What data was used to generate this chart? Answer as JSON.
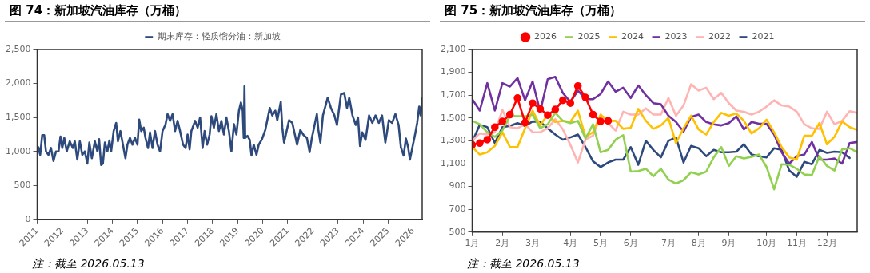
{
  "chart_data": [
    {
      "type": "line",
      "title": "图 74：新加坡汽油库存（万桶）",
      "legend": "top",
      "xlim": [
        2011,
        2026.36
      ],
      "xticks": [
        2011,
        2012,
        2013,
        2014,
        2015,
        2016,
        2017,
        2018,
        2019,
        2020,
        2021,
        2022,
        2023,
        2024,
        2025,
        2026
      ],
      "ylim": [
        0,
        2500
      ],
      "yticks": [
        0,
        500,
        {
          "value": 1000,
          "label": "1,000"
        },
        {
          "value": 1500,
          "label": "1,500"
        },
        {
          "value": 2000,
          "label": "2,000"
        },
        {
          "value": 2500,
          "label": "2,500"
        }
      ],
      "annotations": [
        "注：截至 2026.05.13"
      ],
      "x": [
        2011.0,
        2011.05,
        2011.12,
        2011.2,
        2011.28,
        2011.35,
        2011.45,
        2011.55,
        2011.65,
        2011.75,
        2011.85,
        2011.93,
        2012.0,
        2012.08,
        2012.18,
        2012.3,
        2012.42,
        2012.5,
        2012.6,
        2012.7,
        2012.8,
        2012.9,
        2013.0,
        2013.08,
        2013.18,
        2013.3,
        2013.4,
        2013.47,
        2013.55,
        2013.62,
        2013.7,
        2013.8,
        2013.88,
        2013.95,
        2014.05,
        2014.15,
        2014.22,
        2014.32,
        2014.42,
        2014.52,
        2014.6,
        2014.7,
        2014.8,
        2014.9,
        2015.0,
        2015.07,
        2015.15,
        2015.25,
        2015.32,
        2015.42,
        2015.5,
        2015.6,
        2015.7,
        2015.8,
        2015.9,
        2016.0,
        2016.12,
        2016.2,
        2016.3,
        2016.4,
        2016.5,
        2016.6,
        2016.7,
        2016.82,
        2016.92,
        2017.0,
        2017.08,
        2017.15,
        2017.3,
        2017.4,
        2017.5,
        2017.6,
        2017.68,
        2017.78,
        2017.88,
        2017.95,
        2018.05,
        2018.15,
        2018.25,
        2018.35,
        2018.45,
        2018.55,
        2018.65,
        2018.75,
        2018.85,
        2018.95,
        2019.05,
        2019.13,
        2019.2,
        2019.24,
        2019.27,
        2019.3,
        2019.39,
        2019.48,
        2019.55,
        2019.64,
        2019.75,
        2019.84,
        2019.97,
        2020.1,
        2020.28,
        2020.38,
        2020.5,
        2020.58,
        2020.72,
        2020.78,
        2020.85,
        2021.05,
        2021.18,
        2021.37,
        2021.5,
        2021.63,
        2021.76,
        2021.87,
        2021.96,
        2022.16,
        2022.22,
        2022.3,
        2022.4,
        2022.59,
        2022.72,
        2022.86,
        2022.96,
        2023.12,
        2023.25,
        2023.36,
        2023.45,
        2023.58,
        2023.71,
        2023.8,
        2023.88,
        2023.97,
        2024.1,
        2024.24,
        2024.37,
        2024.5,
        2024.63,
        2024.76,
        2024.89,
        2025.03,
        2025.16,
        2025.29,
        2025.42,
        2025.51,
        2025.62,
        2025.71,
        2025.8,
        2025.87,
        2025.97,
        2026.07,
        2026.16,
        2026.24,
        2026.3,
        2026.36
      ],
      "series": [
        {
          "name": "期末库存：轻质馏分油：新加坡",
          "color": "#2e4a7d",
          "values": [
            960,
            1060,
            950,
            1240,
            1240,
            1000,
            950,
            1050,
            860,
            1000,
            1000,
            1220,
            1050,
            1200,
            1000,
            1150,
            1050,
            1150,
            880,
            1150,
            950,
            1000,
            820,
            1130,
            900,
            1150,
            1000,
            1180,
            800,
            820,
            1130,
            1000,
            1160,
            1000,
            1300,
            1420,
            1150,
            1300,
            1100,
            900,
            1100,
            1200,
            1100,
            1200,
            1100,
            1470,
            1300,
            1350,
            1200,
            1050,
            1280,
            1050,
            1300,
            1100,
            1000,
            1300,
            1400,
            1550,
            1450,
            1550,
            1300,
            1450,
            1300,
            1100,
            1050,
            1250,
            1030,
            1300,
            1450,
            1350,
            1500,
            1050,
            1300,
            1100,
            1250,
            1520,
            1350,
            1550,
            1300,
            1450,
            1250,
            1500,
            1300,
            1000,
            1400,
            1250,
            1600,
            1720,
            1600,
            1200,
            1960,
            1200,
            1230,
            1170,
            940,
            1100,
            950,
            1100,
            1180,
            1315,
            1640,
            1530,
            1600,
            1460,
            1730,
            1350,
            1130,
            1460,
            1420,
            1100,
            1315,
            1240,
            1200,
            990,
            1200,
            1550,
            1315,
            1130,
            1530,
            1790,
            1640,
            1530,
            1390,
            1840,
            1860,
            1640,
            1790,
            1530,
            1390,
            1500,
            1080,
            1280,
            1170,
            1530,
            1420,
            1530,
            1420,
            1530,
            1130,
            1460,
            1420,
            1550,
            1390,
            1060,
            940,
            1190,
            1060,
            880,
            1060,
            1240,
            1420,
            1660,
            1530,
            1790
          ]
        }
      ]
    },
    {
      "type": "line",
      "title": "图 75：新加坡汽油库存（万桶）",
      "legend": "top",
      "categories": [
        "1月",
        null,
        null,
        null,
        "2月",
        null,
        null,
        null,
        "3月",
        null,
        null,
        null,
        null,
        "4月",
        null,
        null,
        null,
        "5月",
        null,
        null,
        null,
        "6月",
        null,
        null,
        null,
        null,
        "7月",
        null,
        null,
        null,
        "8月",
        null,
        null,
        null,
        "9月",
        null,
        null,
        null,
        null,
        "10月",
        null,
        null,
        null,
        "11月",
        null,
        null,
        null,
        "12月",
        null,
        null,
        null,
        null
      ],
      "ylim": [
        500,
        2100
      ],
      "yticks": [
        500,
        700,
        900,
        {
          "value": 1100,
          "label": "1,100"
        },
        {
          "value": 1300,
          "label": "1,300"
        },
        {
          "value": 1500,
          "label": "1,500"
        },
        {
          "value": 1700,
          "label": "1,700"
        },
        {
          "value": 1900,
          "label": "1,900"
        },
        {
          "value": 2100,
          "label": "2,100"
        }
      ],
      "annotations": [
        "注：截至 2026.05.13"
      ],
      "series": [
        {
          "name": "2021",
          "color": "#2e4a7d",
          "values": [
            1290,
            1440,
            1420,
            1280,
            1420,
            1430,
            1455,
            1430,
            1470,
            1465,
            1410,
            1355,
            1310,
            1330,
            1355,
            1245,
            1120,
            1070,
            1110,
            1135,
            1135,
            1245,
            1090,
            1300,
            1220,
            1155,
            1300,
            1330,
            1110,
            1255,
            1235,
            1165,
            1220,
            1200,
            1200,
            1205,
            1270,
            1180,
            1165,
            1155,
            1235,
            1220,
            1040,
            985,
            1115,
            1095,
            1220,
            1195,
            1205,
            1200,
            1150,
            null
          ]
        },
        {
          "name": "2022",
          "color": "#ffb3b3",
          "values": [
            1300,
            1365,
            1355,
            1375,
            1570,
            1420,
            1410,
            1445,
            1375,
            1375,
            1410,
            1490,
            1400,
            1265,
            1110,
            1310,
            1345,
            1520,
            1455,
            1390,
            1555,
            1530,
            1530,
            1585,
            1530,
            1530,
            1675,
            1520,
            1610,
            1795,
            1740,
            1765,
            1665,
            1720,
            1630,
            1565,
            1555,
            1530,
            1555,
            1600,
            1655,
            1610,
            1600,
            1555,
            1445,
            1410,
            1405,
            1555,
            1445,
            1475,
            1560,
            1545
          ]
        },
        {
          "name": "2023",
          "color": "#7030a0",
          "values": [
            1665,
            1565,
            1805,
            1565,
            1805,
            1775,
            1850,
            1655,
            1820,
            1555,
            1840,
            1860,
            1720,
            1640,
            1740,
            1665,
            1665,
            1710,
            1820,
            1730,
            1765,
            1675,
            1785,
            1700,
            1630,
            1620,
            1520,
            1465,
            1380,
            1510,
            1530,
            1465,
            1445,
            1435,
            1455,
            1515,
            1400,
            1465,
            1450,
            1450,
            1355,
            1200,
            1100,
            1165,
            1180,
            1290,
            1135,
            1135,
            1145,
            1100,
            1280,
            1290
          ]
        },
        {
          "name": "2024",
          "color": "#ffc000",
          "values": [
            1245,
            1180,
            1200,
            1255,
            1375,
            1245,
            1245,
            1410,
            1565,
            1435,
            1530,
            1465,
            1475,
            1465,
            1565,
            1335,
            1375,
            1530,
            1475,
            1475,
            1405,
            1415,
            1580,
            1475,
            1405,
            1435,
            1500,
            1280,
            1410,
            1520,
            1400,
            1355,
            1465,
            1545,
            1520,
            1540,
            1475,
            1365,
            1410,
            1485,
            1375,
            1245,
            1155,
            1135,
            1345,
            1345,
            1455,
            1270,
            1335,
            1470,
            1420,
            1395
          ]
        },
        {
          "name": "2025",
          "color": "#92d050",
          "values": [
            1475,
            1445,
            1375,
            1335,
            1390,
            1520,
            1515,
            1515,
            1530,
            1410,
            1445,
            1545,
            1475,
            1455,
            1475,
            1320,
            1445,
            1200,
            1220,
            1310,
            1350,
            1030,
            1035,
            1055,
            990,
            1055,
            960,
            925,
            955,
            1025,
            1005,
            1030,
            1155,
            1245,
            1080,
            1165,
            1145,
            1160,
            1180,
            1070,
            875,
            1095,
            1090,
            1055,
            1005,
            1000,
            1165,
            1080,
            1040,
            1225,
            1235,
            1200
          ]
        },
        {
          "name": "2026",
          "color": "#ff0000",
          "marker": "circle",
          "values": [
            1265,
            1280,
            1310,
            1420,
            1470,
            1530,
            1675,
            1460,
            1630,
            1580,
            1525,
            1575,
            1655,
            1630,
            1780,
            1680,
            1530,
            1470,
            1475,
            null,
            null,
            null,
            null,
            null,
            null,
            null,
            null,
            null,
            null,
            null,
            null,
            null,
            null,
            null,
            null,
            null,
            null,
            null,
            null,
            null,
            null,
            null,
            null,
            null,
            null,
            null,
            null,
            null,
            null,
            null,
            null,
            null
          ]
        }
      ]
    }
  ]
}
